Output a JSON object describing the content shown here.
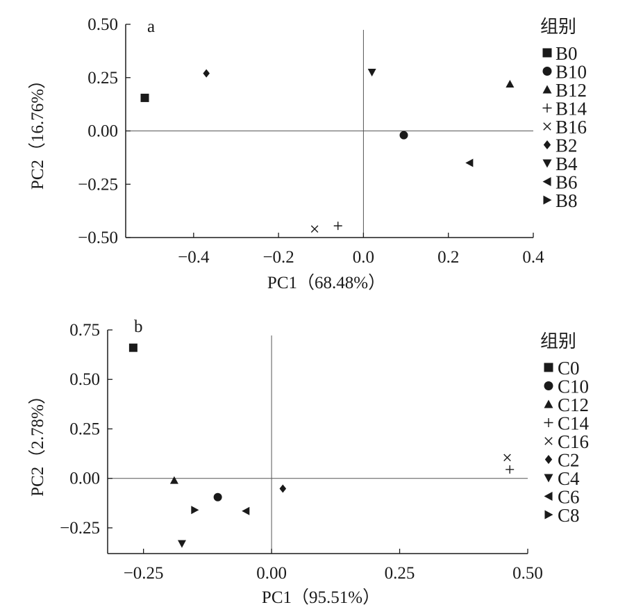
{
  "chart_data": [
    {
      "type": "scatter",
      "panel_label": "a",
      "xlabel": "PC1（68.48%）",
      "ylabel": "PC2（16.76%）",
      "xlim": [
        -0.56,
        0.4
      ],
      "ylim": [
        -0.5,
        0.5
      ],
      "x_ticks": [
        -0.4,
        -0.2,
        0.0,
        0.2,
        0.4
      ],
      "x_tick_labels": [
        "−0.4",
        "−0.2",
        "0.0",
        "0.2",
        "0.4"
      ],
      "y_ticks": [
        -0.5,
        -0.25,
        0.0,
        0.25,
        0.5
      ],
      "y_tick_labels": [
        "−0.50",
        "−0.25",
        "0.00",
        "0.25",
        "0.50"
      ],
      "reference_lines": {
        "x": 0,
        "y": 0
      },
      "legend_title": "组别",
      "legend_position": "right",
      "series": [
        {
          "name": "B0",
          "marker": "square",
          "x": -0.515,
          "y": 0.155
        },
        {
          "name": "B10",
          "marker": "circle",
          "x": 0.095,
          "y": -0.02
        },
        {
          "name": "B12",
          "marker": "triangle-up",
          "x": 0.345,
          "y": 0.22
        },
        {
          "name": "B14",
          "marker": "plus",
          "x": -0.06,
          "y": -0.445
        },
        {
          "name": "B16",
          "marker": "cross",
          "x": -0.115,
          "y": -0.46
        },
        {
          "name": "B2",
          "marker": "diamond",
          "x": -0.37,
          "y": 0.27
        },
        {
          "name": "B4",
          "marker": "triangle-down",
          "x": 0.02,
          "y": 0.275
        },
        {
          "name": "B6",
          "marker": "triangle-left",
          "x": 0.25,
          "y": -0.15
        },
        {
          "name": "B8",
          "marker": "triangle-right",
          "x": null,
          "y": null
        }
      ]
    },
    {
      "type": "scatter",
      "panel_label": "b",
      "xlabel": "PC1（95.51%）",
      "ylabel": "PC2（2.78%）",
      "xlim": [
        -0.32,
        0.5
      ],
      "ylim": [
        -0.38,
        0.75
      ],
      "x_ticks": [
        -0.25,
        0.0,
        0.25,
        0.5
      ],
      "x_tick_labels": [
        "−0.25",
        "0.00",
        "0.25",
        "0.50"
      ],
      "y_ticks": [
        -0.25,
        0.0,
        0.25,
        0.5,
        0.75
      ],
      "y_tick_labels": [
        "−0.25",
        "0.00",
        "0.25",
        "0.50",
        "0.75"
      ],
      "reference_lines": {
        "x": 0,
        "y": 0
      },
      "legend_title": "组别",
      "legend_position": "right",
      "series": [
        {
          "name": "C0",
          "marker": "square",
          "x": -0.27,
          "y": 0.66
        },
        {
          "name": "C10",
          "marker": "circle",
          "x": -0.105,
          "y": -0.095
        },
        {
          "name": "C12",
          "marker": "triangle-up",
          "x": -0.19,
          "y": -0.01
        },
        {
          "name": "C14",
          "marker": "plus",
          "x": 0.465,
          "y": 0.045
        },
        {
          "name": "C16",
          "marker": "cross",
          "x": 0.46,
          "y": 0.105
        },
        {
          "name": "C2",
          "marker": "diamond",
          "x": 0.022,
          "y": -0.052
        },
        {
          "name": "C4",
          "marker": "triangle-down",
          "x": -0.175,
          "y": -0.33
        },
        {
          "name": "C6",
          "marker": "triangle-left",
          "x": -0.05,
          "y": -0.165
        },
        {
          "name": "C8",
          "marker": "triangle-right",
          "x": -0.15,
          "y": -0.16
        }
      ]
    }
  ]
}
